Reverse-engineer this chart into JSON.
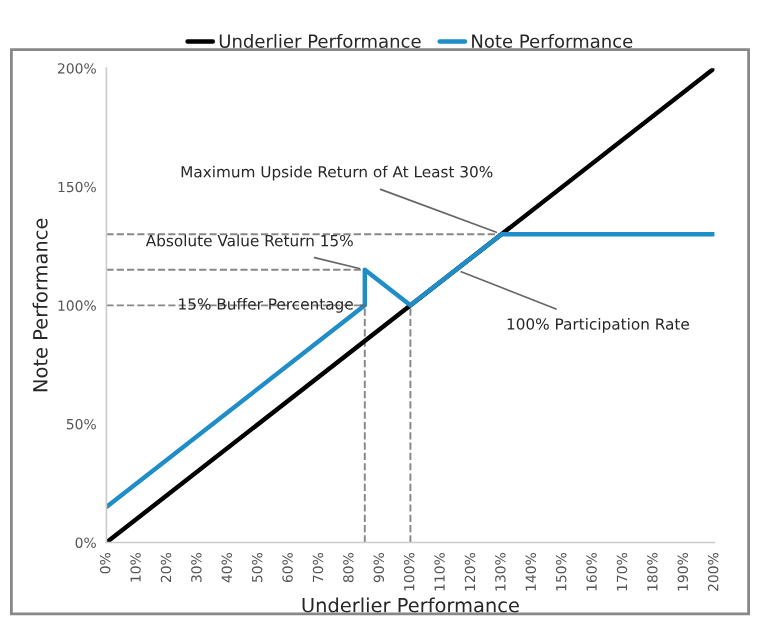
{
  "chart_data": {
    "type": "line",
    "xlabel": "Underlier Performance",
    "ylabel": "Note Performance",
    "series": [
      {
        "name": "Underlier Performance",
        "color": "#000000",
        "x": [
          0,
          200
        ],
        "values": [
          0,
          200
        ]
      },
      {
        "name": "Note Performance",
        "color": "#1f8dc8",
        "x": [
          0,
          85,
          85,
          100,
          130,
          200
        ],
        "values": [
          15,
          100,
          115,
          100,
          130,
          130
        ]
      }
    ],
    "xlim": [
      0,
      200
    ],
    "ylim": [
      0,
      200
    ],
    "xticks": [
      {
        "value": 0,
        "label": "0%"
      },
      {
        "value": 10,
        "label": "10%"
      },
      {
        "value": 20,
        "label": "20%"
      },
      {
        "value": 30,
        "label": "30%"
      },
      {
        "value": 40,
        "label": "40%"
      },
      {
        "value": 50,
        "label": "50%"
      },
      {
        "value": 60,
        "label": "60%"
      },
      {
        "value": 70,
        "label": "70%"
      },
      {
        "value": 80,
        "label": "80%"
      },
      {
        "value": 90,
        "label": "90%"
      },
      {
        "value": 100,
        "label": "100%"
      },
      {
        "value": 110,
        "label": "110%"
      },
      {
        "value": 120,
        "label": "120%"
      },
      {
        "value": 130,
        "label": "130%"
      },
      {
        "value": 140,
        "label": "140%"
      },
      {
        "value": 150,
        "label": "150%"
      },
      {
        "value": 160,
        "label": "160%"
      },
      {
        "value": 170,
        "label": "170%"
      },
      {
        "value": 180,
        "label": "180%"
      },
      {
        "value": 190,
        "label": "190%"
      },
      {
        "value": 200,
        "label": "200%"
      }
    ],
    "yticks": [
      {
        "value": 0,
        "label": "0%"
      },
      {
        "value": 50,
        "label": "50%"
      },
      {
        "value": 100,
        "label": "100%"
      },
      {
        "value": 150,
        "label": "150%"
      },
      {
        "value": 200,
        "label": "200%"
      }
    ],
    "ref_lines": [
      {
        "axis": "y",
        "value": 130,
        "color": "#888888",
        "line_style": "dashed"
      },
      {
        "axis": "y",
        "value": 115,
        "color": "#888888",
        "line_style": "dashed"
      },
      {
        "axis": "y",
        "value": 100,
        "color": "#888888",
        "line_style": "dashed"
      },
      {
        "axis": "x",
        "value": 85,
        "color": "#888888",
        "line_style": "dashed"
      },
      {
        "axis": "x",
        "value": 100,
        "color": "#888888",
        "line_style": "dashed"
      }
    ],
    "annotations": [
      {
        "text": "Maximum Upside Return of At Least 30%",
        "x": 130,
        "y": 130
      },
      {
        "text": "Absolute Value Return 15%",
        "x": 85,
        "y": 115
      },
      {
        "text": "15% Buffer Percentage",
        "x": 85,
        "y": 100
      },
      {
        "text": "100% Participation Rate",
        "x": 115,
        "y": 115
      }
    ],
    "legend": "top",
    "grid": false,
    "marker": "none",
    "line_style": "solid"
  }
}
